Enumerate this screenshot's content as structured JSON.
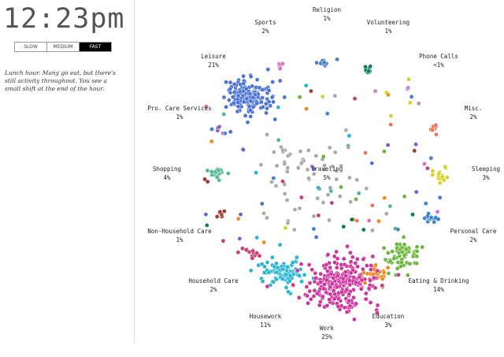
{
  "clock": "12:23pm",
  "speed_buttons": [
    {
      "label": "SLOW",
      "active": false
    },
    {
      "label": "MEDIUM",
      "active": false
    },
    {
      "label": "FAST",
      "active": true
    }
  ],
  "description": "Lunch hour. Many go eat, but there's still activity throughout. You see a small shift at the end of the hour.",
  "activities": [
    {
      "name": "Religion",
      "pct": "1%",
      "color": "#4a7fc1"
    },
    {
      "name": "Sports",
      "pct": "2%",
      "color": "#d96fc4"
    },
    {
      "name": "Volunteering",
      "pct": "1%",
      "color": "#0f7a5f"
    },
    {
      "name": "Phone Calls",
      "pct": "<1%",
      "color": "#c882d6"
    },
    {
      "name": "Leisure",
      "pct": "21%",
      "color": "#4b72d6"
    },
    {
      "name": "Misc.",
      "pct": "2%",
      "color": "#e9745a"
    },
    {
      "name": "Pro. Care Services",
      "pct": "1%",
      "color": "#7a5fc8"
    },
    {
      "name": "Shopping",
      "pct": "4%",
      "color": "#4fb896"
    },
    {
      "name": "Traveling",
      "pct": "5%",
      "color": "#a9a9a9"
    },
    {
      "name": "Sleeping",
      "pct": "3%",
      "color": "#d6d324"
    },
    {
      "name": "Non-Household Care",
      "pct": "1%",
      "color": "#9e3b32"
    },
    {
      "name": "Personal Care",
      "pct": "2%",
      "color": "#3a86d1"
    },
    {
      "name": "Household Care",
      "pct": "2%",
      "color": "#c63d72"
    },
    {
      "name": "Eating & Drinking",
      "pct": "14%",
      "color": "#69b83a"
    },
    {
      "name": "Housework",
      "pct": "11%",
      "color": "#27b6d1"
    },
    {
      "name": "Education",
      "pct": "3%",
      "color": "#f08a1c"
    },
    {
      "name": "Work",
      "pct": "25%",
      "color": "#d0339c"
    }
  ]
}
